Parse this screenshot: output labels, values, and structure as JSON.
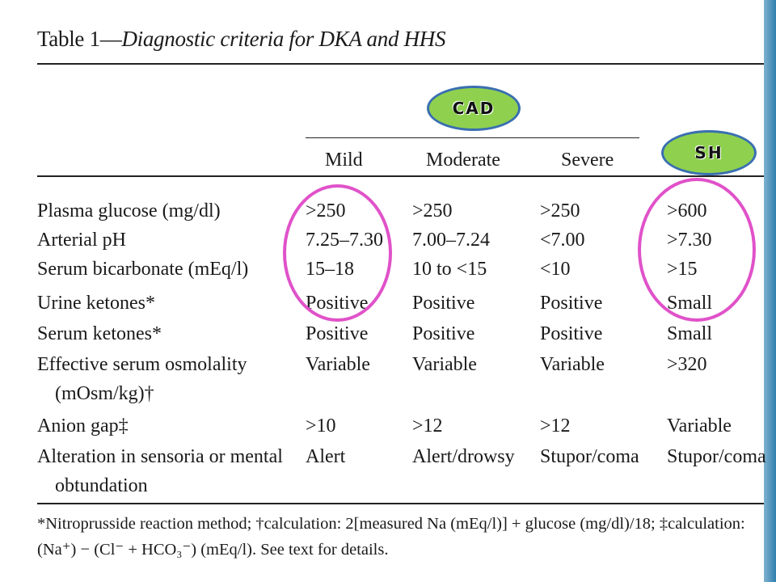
{
  "table": {
    "title_label": "Table 1—",
    "title_italic": "Diagnostic criteria for DKA and HHS",
    "columns": [
      "Mild",
      "Moderate",
      "Severe"
    ],
    "rows": [
      {
        "label": "Plasma glucose (mg/dl)",
        "mild": ">250",
        "moderate": ">250",
        "severe": ">250",
        "hhs": ">600"
      },
      {
        "label": "Arterial pH",
        "mild": "7.25–7.30",
        "moderate": "7.00–7.24",
        "severe": "<7.00",
        "hhs": ">7.30"
      },
      {
        "label": "Serum bicarbonate (mEq/l)",
        "mild": "15–18",
        "moderate": "10 to <15",
        "severe": "<10",
        "hhs": ">15"
      },
      {
        "label": "Urine ketones*",
        "mild": "Positive",
        "moderate": "Positive",
        "severe": "Positive",
        "hhs": "Small"
      },
      {
        "label": "Serum ketones*",
        "mild": "Positive",
        "moderate": "Positive",
        "severe": "Positive",
        "hhs": "Small"
      },
      {
        "label": "Effective serum osmolality",
        "label2": "(mOsm/kg)†",
        "mild": "Variable",
        "moderate": "Variable",
        "severe": "Variable",
        "hhs": ">320"
      },
      {
        "label": "Anion gap‡",
        "mild": ">10",
        "moderate": ">12",
        "severe": ">12",
        "hhs": "Variable"
      },
      {
        "label": "Alteration in sensoria or mental",
        "label2": "obtundation",
        "mild": "Alert",
        "moderate": "Alert/drowsy",
        "severe": "Stupor/coma",
        "hhs": "Stupor/coma"
      }
    ],
    "footnote_line1": "*Nitroprusside reaction method; †calculation: 2[measured Na (mEq/l)] + glucose (mg/dl)/18; ‡calculation:",
    "footnote_line2": "(Na⁺) − (Cl⁻ + HCO₃⁻) (mEq/l). See text for details."
  },
  "annotations": {
    "cad_label": "CAD",
    "sh_label": "SH",
    "badge_color": "#8fd14f",
    "oval_color": "#e052c9"
  }
}
